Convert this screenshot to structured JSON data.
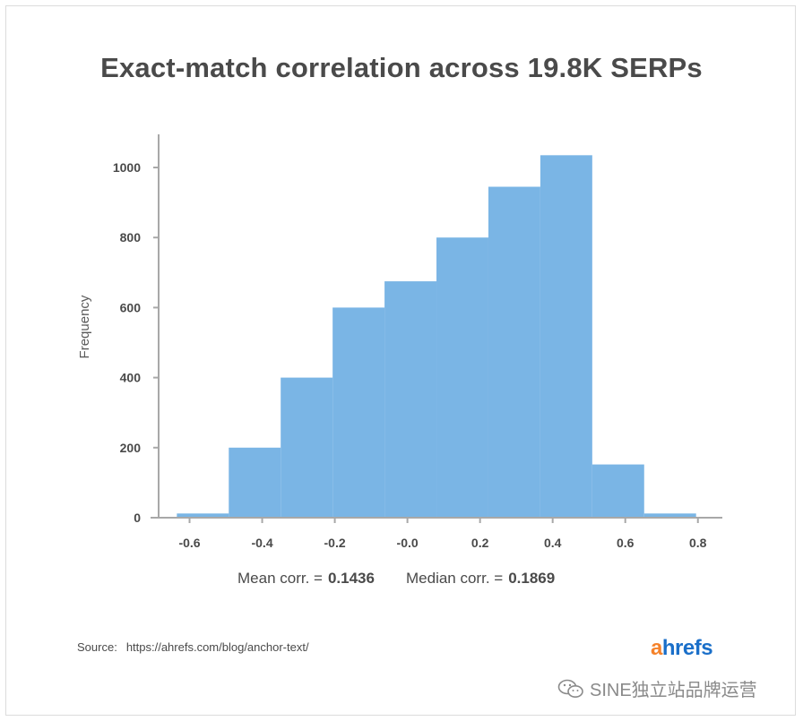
{
  "chart_data": {
    "type": "bar",
    "title": "Exact-match correlation across 19.8K SERPs",
    "xlabel": "",
    "ylabel": "Frequency",
    "xlim": [
      -0.7,
      0.85
    ],
    "ylim": [
      0,
      1100
    ],
    "x_ticks": [
      "-0.6",
      "-0.4",
      "-0.2",
      "-0.0",
      "0.2",
      "0.4",
      "0.6",
      "0.8"
    ],
    "y_ticks": [
      "0",
      "200",
      "400",
      "600",
      "800",
      "1000"
    ],
    "bins": [
      {
        "x0": -0.635,
        "x1": -0.492,
        "count": 12
      },
      {
        "x0": -0.492,
        "x1": -0.349,
        "count": 200
      },
      {
        "x0": -0.349,
        "x1": -0.206,
        "count": 400
      },
      {
        "x0": -0.206,
        "x1": -0.063,
        "count": 600
      },
      {
        "x0": -0.063,
        "x1": 0.08,
        "count": 675
      },
      {
        "x0": 0.08,
        "x1": 0.223,
        "count": 800
      },
      {
        "x0": 0.223,
        "x1": 0.366,
        "count": 945
      },
      {
        "x0": 0.366,
        "x1": 0.509,
        "count": 1035
      },
      {
        "x0": 0.509,
        "x1": 0.652,
        "count": 152
      },
      {
        "x0": 0.652,
        "x1": 0.795,
        "count": 12
      }
    ],
    "bar_color": "#7ab5e5",
    "axis_color": "#a8a8a8",
    "grid": false
  },
  "stats": {
    "mean_label": "Mean corr. =",
    "mean_value": "0.1436",
    "median_label": "Median corr. =",
    "median_value": "0.1869"
  },
  "source": {
    "label": "Source:",
    "url": "https://ahrefs.com/blog/anchor-text/"
  },
  "logo": {
    "a": "a",
    "rest": "hrefs"
  },
  "watermark": {
    "text": "SINE独立站品牌运营",
    "icon": "wechat-icon"
  }
}
